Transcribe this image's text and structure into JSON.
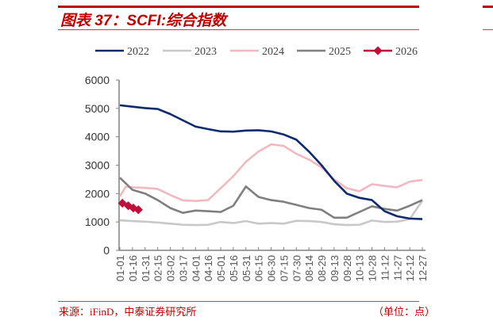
{
  "header": {
    "title": "图表 37：SCFI:综合指数"
  },
  "footer": {
    "source": "来源：iFinD，中泰证券研究所",
    "unit": "（单位：点）"
  },
  "chart_data": {
    "type": "line",
    "title": "",
    "xlabel": "",
    "ylabel": "",
    "ylim": [
      0,
      6000
    ],
    "yticks": [
      0,
      1000,
      2000,
      3000,
      4000,
      5000,
      6000
    ],
    "xticks": [
      "01-01",
      "01-16",
      "01-31",
      "02-15",
      "03-02",
      "03-17",
      "04-01",
      "04-16",
      "05-01",
      "05-16",
      "05-31",
      "06-15",
      "06-30",
      "07-15",
      "07-30",
      "08-14",
      "08-29",
      "09-13",
      "09-28",
      "10-13",
      "10-28",
      "11-12",
      "11-27",
      "12-12",
      "12-27"
    ],
    "grid": false,
    "legend": "top",
    "series": [
      {
        "name": "2022",
        "color": "#0d2a6b",
        "x": [
          "01-01",
          "01-16",
          "01-31",
          "02-15",
          "03-02",
          "03-17",
          "04-01",
          "04-16",
          "05-01",
          "05-16",
          "05-31",
          "06-15",
          "06-30",
          "07-15",
          "07-30",
          "08-14",
          "08-29",
          "09-13",
          "09-28",
          "10-13",
          "10-28",
          "11-12",
          "11-27",
          "12-12",
          "12-27"
        ],
        "values": [
          5110,
          5060,
          5010,
          4980,
          4800,
          4580,
          4360,
          4270,
          4190,
          4180,
          4220,
          4230,
          4190,
          4080,
          3900,
          3480,
          3000,
          2450,
          2000,
          1850,
          1770,
          1380,
          1200,
          1120,
          1100
        ]
      },
      {
        "name": "2023",
        "color": "#c8c8c8",
        "x": [
          "01-01",
          "01-16",
          "01-31",
          "02-15",
          "03-02",
          "03-17",
          "04-01",
          "04-16",
          "05-01",
          "05-16",
          "05-31",
          "06-15",
          "06-30",
          "07-15",
          "07-30",
          "08-14",
          "08-29",
          "09-13",
          "09-28",
          "10-13",
          "10-28",
          "11-12",
          "11-27",
          "12-12",
          "12-27"
        ],
        "values": [
          1060,
          1030,
          1010,
          980,
          940,
          900,
          890,
          900,
          1000,
          960,
          1030,
          940,
          960,
          940,
          1040,
          1030,
          1000,
          920,
          890,
          900,
          1050,
          1000,
          1010,
          1100,
          1750
        ]
      },
      {
        "name": "2024",
        "color": "#f2b8c0",
        "x": [
          "01-01",
          "01-08",
          "01-16",
          "01-31",
          "02-15",
          "03-02",
          "03-17",
          "04-01",
          "04-16",
          "05-01",
          "05-16",
          "05-31",
          "06-15",
          "06-30",
          "07-15",
          "07-30",
          "08-14",
          "08-29",
          "09-13",
          "09-28",
          "10-13",
          "10-28",
          "11-12",
          "11-27",
          "12-12",
          "12-27"
        ],
        "values": [
          1900,
          2240,
          2220,
          2200,
          2160,
          1950,
          1760,
          1740,
          1770,
          2190,
          2610,
          3120,
          3480,
          3730,
          3680,
          3400,
          3200,
          2920,
          2500,
          2190,
          2080,
          2330,
          2270,
          2220,
          2420,
          2480
        ]
      },
      {
        "name": "2025",
        "color": "#7f7f7f",
        "x": [
          "01-01",
          "01-16",
          "01-31",
          "02-15",
          "03-02",
          "03-17",
          "04-01",
          "04-16",
          "05-01",
          "05-16",
          "05-31",
          "06-15",
          "06-30",
          "07-15",
          "07-30",
          "08-14",
          "08-29",
          "09-13",
          "09-28",
          "10-13",
          "10-28",
          "11-12",
          "11-27",
          "12-12",
          "12-27"
        ],
        "values": [
          2560,
          2130,
          2000,
          1770,
          1490,
          1320,
          1400,
          1380,
          1350,
          1570,
          2250,
          1880,
          1770,
          1710,
          1600,
          1490,
          1430,
          1150,
          1150,
          1350,
          1550,
          1460,
          1400,
          1570,
          1770
        ]
      },
      {
        "name": "2026",
        "color": "#c0103a",
        "marker": "diamond",
        "x": [
          "01-04",
          "01-11",
          "01-17",
          "01-23"
        ],
        "values": [
          1660,
          1570,
          1490,
          1430
        ]
      }
    ]
  }
}
